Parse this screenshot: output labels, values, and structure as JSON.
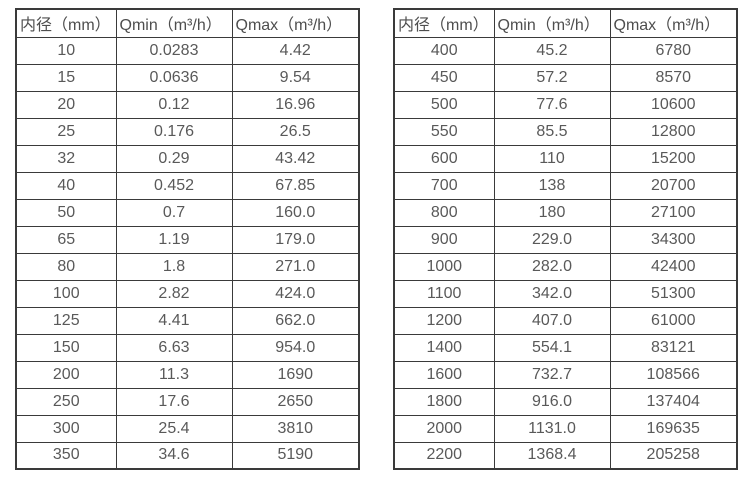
{
  "colors": {
    "background": "#ffffff",
    "table_border": "#3a3a3a",
    "text": "#595959"
  },
  "chart_data": [
    {
      "type": "table",
      "columns": [
        "内径（mm）",
        "Qmin（m³/h）",
        "Qmax（m³/h）"
      ],
      "rows": [
        [
          "10",
          "0.0283",
          "4.42"
        ],
        [
          "15",
          "0.0636",
          "9.54"
        ],
        [
          "20",
          "0.12",
          "16.96"
        ],
        [
          "25",
          "0.176",
          "26.5"
        ],
        [
          "32",
          "0.29",
          "43.42"
        ],
        [
          "40",
          "0.452",
          "67.85"
        ],
        [
          "50",
          "0.7",
          "160.0"
        ],
        [
          "65",
          "1.19",
          "179.0"
        ],
        [
          "80",
          "1.8",
          "271.0"
        ],
        [
          "100",
          "2.82",
          "424.0"
        ],
        [
          "125",
          "4.41",
          "662.0"
        ],
        [
          "150",
          "6.63",
          "954.0"
        ],
        [
          "200",
          "11.3",
          "1690"
        ],
        [
          "250",
          "17.6",
          "2650"
        ],
        [
          "300",
          "25.4",
          "3810"
        ],
        [
          "350",
          "34.6",
          "5190"
        ]
      ]
    },
    {
      "type": "table",
      "columns": [
        "内径（mm）",
        "Qmin（m³/h）",
        "Qmax（m³/h）"
      ],
      "rows": [
        [
          "400",
          "45.2",
          "6780"
        ],
        [
          "450",
          "57.2",
          "8570"
        ],
        [
          "500",
          "77.6",
          "10600"
        ],
        [
          "550",
          "85.5",
          "12800"
        ],
        [
          "600",
          "110",
          "15200"
        ],
        [
          "700",
          "138",
          "20700"
        ],
        [
          "800",
          "180",
          "27100"
        ],
        [
          "900",
          "229.0",
          "34300"
        ],
        [
          "1000",
          "282.0",
          "42400"
        ],
        [
          "1100",
          "342.0",
          "51300"
        ],
        [
          "1200",
          "407.0",
          "61000"
        ],
        [
          "1400",
          "554.1",
          "83121"
        ],
        [
          "1600",
          "732.7",
          "108566"
        ],
        [
          "1800",
          "916.0",
          "137404"
        ],
        [
          "2000",
          "1131.0",
          "169635"
        ],
        [
          "2200",
          "1368.4",
          "205258"
        ]
      ]
    }
  ]
}
